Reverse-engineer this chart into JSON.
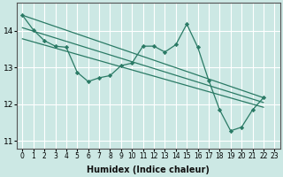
{
  "background_color": "#cce8e4",
  "grid_color": "#ffffff",
  "line_color": "#2a7a65",
  "xlabel": "Humidex (Indice chaleur)",
  "ylim": [
    10.8,
    14.75
  ],
  "xlim": [
    -0.5,
    23.5
  ],
  "yticks": [
    11,
    12,
    13,
    14
  ],
  "xticks": [
    0,
    1,
    2,
    3,
    4,
    5,
    6,
    7,
    8,
    9,
    10,
    11,
    12,
    13,
    14,
    15,
    16,
    17,
    18,
    19,
    20,
    21,
    22,
    23
  ],
  "series": [
    {
      "x": [
        0,
        1,
        2,
        3,
        4,
        5,
        6,
        7,
        8,
        9,
        10,
        11,
        12,
        13,
        14,
        15,
        16,
        17,
        18,
        19,
        20,
        21,
        22
      ],
      "y": [
        14.42,
        14.02,
        13.73,
        13.58,
        13.55,
        12.87,
        12.62,
        12.72,
        12.78,
        13.05,
        13.12,
        13.58,
        13.58,
        13.42,
        13.62,
        14.18,
        13.55,
        12.65,
        11.85,
        11.28,
        11.38,
        11.85,
        12.18
      ],
      "markers": true
    },
    {
      "x": [
        0,
        22
      ],
      "y": [
        14.42,
        12.18
      ],
      "markers": false
    },
    {
      "x": [
        0,
        22
      ],
      "y": [
        14.08,
        12.05
      ],
      "markers": false
    },
    {
      "x": [
        0,
        22
      ],
      "y": [
        13.78,
        11.92
      ],
      "markers": false
    }
  ]
}
